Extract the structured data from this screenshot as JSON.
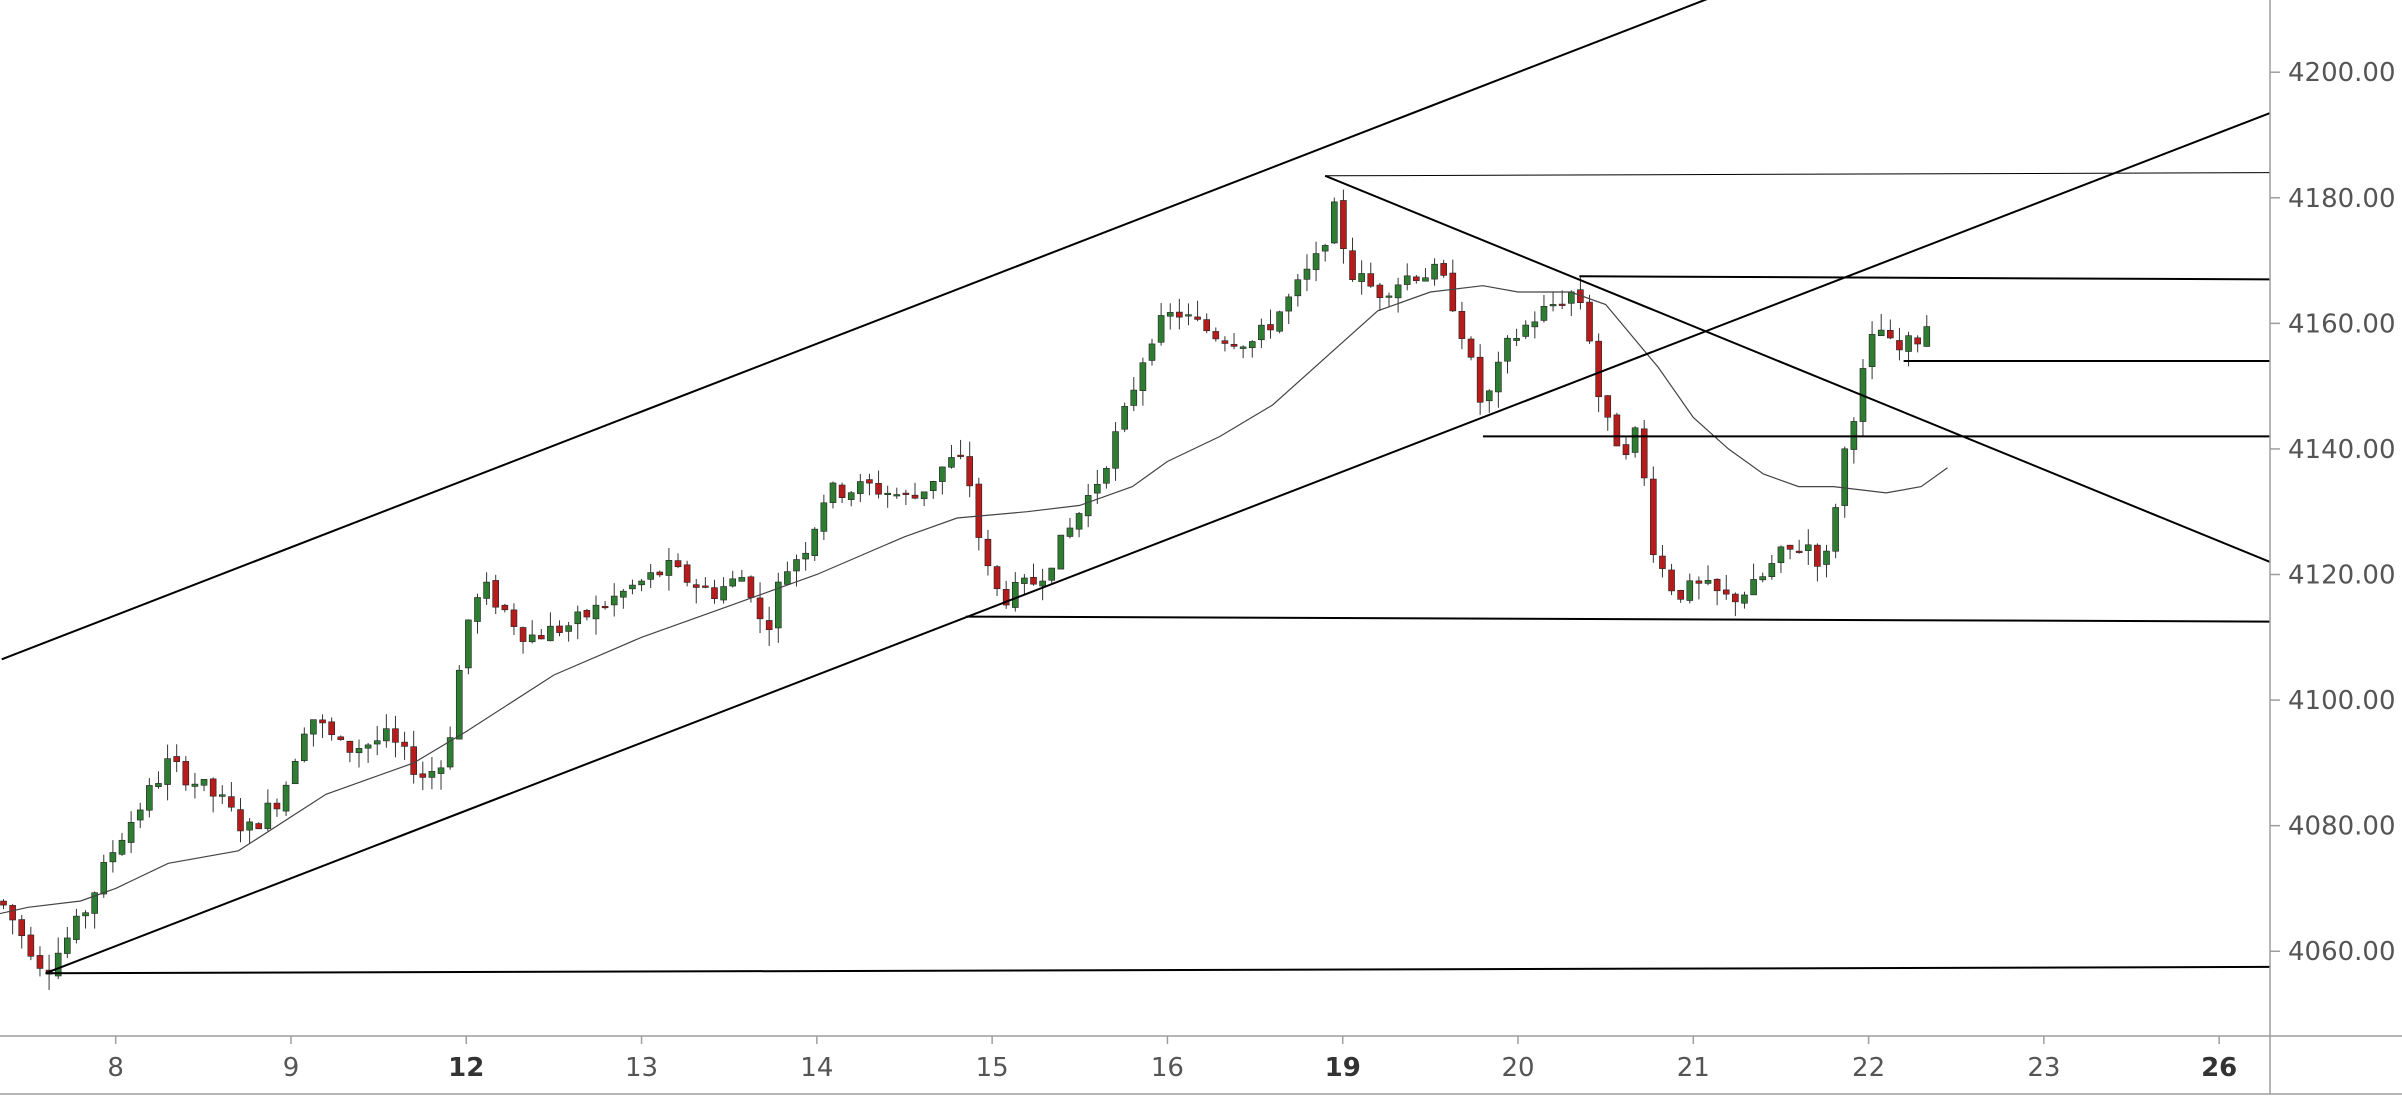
{
  "chart_data": {
    "type": "candlestick",
    "price_axis": {
      "ticks": [
        4060,
        4080,
        4100,
        4120,
        4140,
        4160,
        4180,
        4200
      ],
      "labels": [
        "4060.00",
        "4080.00",
        "4100.00",
        "4120.00",
        "4140.00",
        "4160.00",
        "4180.00",
        "4200.00"
      ],
      "ylim": [
        4046.5,
        4211.5
      ]
    },
    "time_axis": {
      "ticks": [
        {
          "session": 1,
          "label": "8",
          "bold": false
        },
        {
          "session": 2,
          "label": "9",
          "bold": false
        },
        {
          "session": 3,
          "label": "12",
          "bold": true
        },
        {
          "session": 4,
          "label": "13",
          "bold": false
        },
        {
          "session": 5,
          "label": "14",
          "bold": false
        },
        {
          "session": 6,
          "label": "15",
          "bold": false
        },
        {
          "session": 7,
          "label": "16",
          "bold": false
        },
        {
          "session": 8,
          "label": "19",
          "bold": true
        },
        {
          "session": 9,
          "label": "20",
          "bold": false
        },
        {
          "session": 10,
          "label": "21",
          "bold": false
        },
        {
          "session": 11,
          "label": "22",
          "bold": false
        },
        {
          "session": 12,
          "label": "23",
          "bold": false
        },
        {
          "session": 13,
          "label": "26",
          "bold": true
        }
      ],
      "xlim": [
        0.34,
        13.29
      ]
    },
    "colors": {
      "up": "#2e7d32",
      "down": "#b71c1c",
      "trendline": "#000000",
      "moving_average": "#444444",
      "axis_text": "#555555"
    },
    "candle_anchors": [
      [
        0.34,
        4068
      ],
      [
        0.6,
        4057
      ],
      [
        0.8,
        4065
      ],
      [
        1.0,
        4077
      ],
      [
        1.3,
        4090
      ],
      [
        1.6,
        4084
      ],
      [
        1.75,
        4079
      ],
      [
        1.95,
        4085
      ],
      [
        2.1,
        4098
      ],
      [
        2.3,
        4092
      ],
      [
        2.55,
        4094
      ],
      [
        2.75,
        4088
      ],
      [
        2.88,
        4090
      ],
      [
        3.0,
        4112
      ],
      [
        3.1,
        4118
      ],
      [
        3.35,
        4110
      ],
      [
        3.6,
        4112
      ],
      [
        3.95,
        4118
      ],
      [
        4.15,
        4121
      ],
      [
        4.4,
        4117
      ],
      [
        4.6,
        4120
      ],
      [
        4.7,
        4110
      ],
      [
        4.8,
        4120
      ],
      [
        4.95,
        4125
      ],
      [
        5.05,
        4133
      ],
      [
        5.3,
        4134
      ],
      [
        5.55,
        4132
      ],
      [
        5.75,
        4138
      ],
      [
        5.85,
        4138
      ],
      [
        5.95,
        4122
      ],
      [
        6.05,
        4116
      ],
      [
        6.25,
        4119
      ],
      [
        6.4,
        4125
      ],
      [
        6.6,
        4135
      ],
      [
        6.75,
        4145
      ],
      [
        6.9,
        4158
      ],
      [
        7.05,
        4162
      ],
      [
        7.15,
        4160
      ],
      [
        7.3,
        4158
      ],
      [
        7.5,
        4157
      ],
      [
        7.7,
        4164
      ],
      [
        7.85,
        4170
      ],
      [
        7.95,
        4178
      ],
      [
        8.05,
        4168
      ],
      [
        8.2,
        4165
      ],
      [
        8.4,
        4168
      ],
      [
        8.55,
        4168
      ],
      [
        8.65,
        4162
      ],
      [
        8.8,
        4146
      ],
      [
        8.95,
        4157
      ],
      [
        9.1,
        4161
      ],
      [
        9.3,
        4165
      ],
      [
        9.38,
        4163
      ],
      [
        9.48,
        4145
      ],
      [
        9.6,
        4140
      ],
      [
        9.68,
        4143
      ],
      [
        9.78,
        4123
      ],
      [
        9.9,
        4117
      ],
      [
        10.05,
        4118
      ],
      [
        10.2,
        4116
      ],
      [
        10.35,
        4118
      ],
      [
        10.5,
        4123
      ],
      [
        10.65,
        4125
      ],
      [
        10.75,
        4121
      ],
      [
        10.85,
        4138
      ],
      [
        10.95,
        4150
      ],
      [
        11.05,
        4160
      ],
      [
        11.15,
        4155
      ],
      [
        11.3,
        4158
      ],
      [
        11.38,
        4163
      ]
    ],
    "moving_average": [
      [
        0.34,
        4066
      ],
      [
        0.5,
        4067
      ],
      [
        0.8,
        4068
      ],
      [
        1.0,
        4070
      ],
      [
        1.3,
        4074
      ],
      [
        1.7,
        4076
      ],
      [
        2.2,
        4085
      ],
      [
        2.7,
        4090
      ],
      [
        3.0,
        4095
      ],
      [
        3.5,
        4104
      ],
      [
        4.0,
        4110
      ],
      [
        4.5,
        4115
      ],
      [
        5.0,
        4120
      ],
      [
        5.5,
        4126
      ],
      [
        5.8,
        4129
      ],
      [
        6.2,
        4130
      ],
      [
        6.5,
        4131
      ],
      [
        6.8,
        4134
      ],
      [
        7.0,
        4138
      ],
      [
        7.3,
        4142
      ],
      [
        7.6,
        4147
      ],
      [
        8.0,
        4157
      ],
      [
        8.2,
        4162
      ],
      [
        8.5,
        4165
      ],
      [
        8.8,
        4166
      ],
      [
        9.0,
        4165
      ],
      [
        9.3,
        4165
      ],
      [
        9.5,
        4163
      ],
      [
        9.8,
        4153
      ],
      [
        10.0,
        4145
      ],
      [
        10.2,
        4140
      ],
      [
        10.4,
        4136
      ],
      [
        10.6,
        4134
      ],
      [
        10.8,
        4134
      ],
      [
        11.1,
        4133
      ],
      [
        11.3,
        4134
      ],
      [
        11.45,
        4137
      ]
    ],
    "trendlines": [
      {
        "x1": 0.35,
        "y1": 4106.5,
        "x2": 10.25,
        "y2": 4213.5
      },
      {
        "x1": 0.6,
        "y1": 4056.5,
        "x2": 13.29,
        "y2": 4193.5
      },
      {
        "x1": 0.6,
        "y1": 4056.5,
        "x2": 13.29,
        "y2": 4057.5
      },
      {
        "x1": 5.85,
        "y1": 4113.3,
        "x2": 13.29,
        "y2": 4112.5
      },
      {
        "x1": 7.9,
        "y1": 4183.5,
        "x2": 13.29,
        "y2": 4122.0
      },
      {
        "x1": 7.9,
        "y1": 4183.5,
        "x2": 13.29,
        "y2": 4184.0
      },
      {
        "x1": 9.35,
        "y1": 4167.5,
        "x2": 13.29,
        "y2": 4167.0
      },
      {
        "x1": 8.8,
        "y1": 4142.0,
        "x2": 13.29,
        "y2": 4142.0
      },
      {
        "x1": 11.2,
        "y1": 4154.0,
        "x2": 13.29,
        "y2": 4154.0
      }
    ]
  }
}
